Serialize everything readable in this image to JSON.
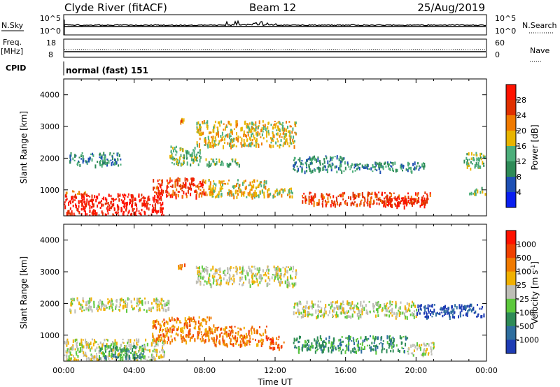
{
  "header": {
    "station": "Clyde River (fitACF)",
    "beam": "Beam 12",
    "date": "25/Aug/2019"
  },
  "top_panels": {
    "nsky_label": "N.Sky",
    "nsky_ticks": [
      "10^5",
      "10^0"
    ],
    "nsearch_label": "N.Search",
    "nsearch_ticks": [
      "10^5",
      "10^0"
    ],
    "freq_label_1": "Freq.",
    "freq_label_2": "[MHz]",
    "freq_ticks": [
      "18",
      "8"
    ],
    "nave_label": "Nave",
    "nave_ticks": [
      "60",
      "0"
    ],
    "cpid_label": "CPID",
    "cpid_text": "normal (fast) 151"
  },
  "chart_data": [
    {
      "type": "heatmap",
      "name": "power",
      "ylabel": "Slant Range [km]",
      "ylim": [
        180,
        4500
      ],
      "yticks": [
        1000,
        2000,
        3000,
        4000
      ],
      "xlim": [
        "00:00",
        "24:00"
      ],
      "colorbar_label": "Power [dB]",
      "colorbar_ticks": [
        "28",
        "24",
        "20",
        "16",
        "12",
        "8",
        "4"
      ],
      "colorbar_colors": [
        "#0a1ff0",
        "#1e50b4",
        "#2e8b57",
        "#4cae7a",
        "#e8b400",
        "#f07a00",
        "#e03000",
        "#ff1200"
      ],
      "regions": [
        {
          "t0": 0.0,
          "t1": 5.7,
          "r0": 200,
          "r1": 900,
          "level": 7
        },
        {
          "t0": 0.0,
          "t1": 1.2,
          "r0": 900,
          "r1": 1000,
          "level": 5
        },
        {
          "t0": 5.0,
          "t1": 8.0,
          "r0": 800,
          "r1": 1400,
          "level": 6
        },
        {
          "t0": 8.0,
          "t1": 11.5,
          "r0": 800,
          "r1": 1350,
          "level": 4
        },
        {
          "t0": 11.5,
          "t1": 13.0,
          "r0": 800,
          "r1": 1100,
          "level": 4
        },
        {
          "t0": 13.5,
          "t1": 20.8,
          "r0": 550,
          "r1": 950,
          "level": 6
        },
        {
          "t0": 18.0,
          "t1": 20.5,
          "r0": 500,
          "r1": 800,
          "level": 7
        },
        {
          "t0": 0.3,
          "t1": 3.2,
          "r0": 1800,
          "r1": 2200,
          "level": 2
        },
        {
          "t0": 6.0,
          "t1": 7.8,
          "r0": 1800,
          "r1": 2400,
          "level": 3
        },
        {
          "t0": 8.0,
          "t1": 10.0,
          "r0": 1800,
          "r1": 2000,
          "level": 3
        },
        {
          "t0": 7.5,
          "t1": 13.2,
          "r0": 2400,
          "r1": 3200,
          "level": 4
        },
        {
          "t0": 13.0,
          "t1": 16.0,
          "r0": 1600,
          "r1": 2100,
          "level": 2
        },
        {
          "t0": 16.0,
          "t1": 20.5,
          "r0": 1600,
          "r1": 1900,
          "level": 2
        },
        {
          "t0": 22.7,
          "t1": 23.9,
          "r0": 1700,
          "r1": 2200,
          "level": 3
        },
        {
          "t0": 6.4,
          "t1": 6.9,
          "r0": 3100,
          "r1": 3300,
          "level": 5
        },
        {
          "t0": 23.0,
          "t1": 23.9,
          "r0": 900,
          "r1": 1100,
          "level": 3
        }
      ]
    },
    {
      "type": "heatmap",
      "name": "velocity",
      "ylabel": "Slant Range [km]",
      "xlabel": "Time UT",
      "ylim": [
        180,
        4500
      ],
      "yticks": [
        1000,
        2000,
        3000,
        4000
      ],
      "xlim": [
        "00:00",
        "24:00"
      ],
      "xticks": [
        "00:00",
        "04:00",
        "08:00",
        "12:00",
        "16:00",
        "20:00",
        "00:00"
      ],
      "colorbar_label": "Velocity [m s^-1]",
      "colorbar_ticks": [
        "1000",
        "500",
        "100",
        "25",
        "-25",
        "-100",
        "-500",
        "-1000"
      ],
      "colorbar_colors": [
        "#1e3cb4",
        "#2e6e9e",
        "#2e8b57",
        "#5cc83c",
        "#bebeb6",
        "#f0b000",
        "#f07a00",
        "#f04000",
        "#ff1200"
      ],
      "regions": [
        {
          "t0": 0.0,
          "t1": 5.7,
          "r0": 200,
          "r1": 900,
          "level": 4
        },
        {
          "t0": 2.0,
          "t1": 4.5,
          "r0": 300,
          "r1": 700,
          "level": 2
        },
        {
          "t0": 5.0,
          "t1": 8.5,
          "r0": 800,
          "r1": 1600,
          "level": 6
        },
        {
          "t0": 8.5,
          "t1": 11.5,
          "r0": 700,
          "r1": 1300,
          "level": 6
        },
        {
          "t0": 11.5,
          "t1": 12.5,
          "r0": 600,
          "r1": 1000,
          "level": 7
        },
        {
          "t0": 13.0,
          "t1": 19.5,
          "r0": 500,
          "r1": 1000,
          "level": 2
        },
        {
          "t0": 19.5,
          "t1": 21.0,
          "r0": 400,
          "r1": 800,
          "level": 4
        },
        {
          "t0": 0.3,
          "t1": 6.0,
          "r0": 1800,
          "r1": 2200,
          "level": 4
        },
        {
          "t0": 7.5,
          "t1": 13.2,
          "r0": 2600,
          "r1": 3200,
          "level": 4
        },
        {
          "t0": 13.0,
          "t1": 20.0,
          "r0": 1600,
          "r1": 2100,
          "level": 4
        },
        {
          "t0": 20.0,
          "t1": 23.9,
          "r0": 1600,
          "r1": 2000,
          "level": 0
        },
        {
          "t0": 6.4,
          "t1": 6.9,
          "r0": 3100,
          "r1": 3300,
          "level": 6
        }
      ]
    }
  ]
}
